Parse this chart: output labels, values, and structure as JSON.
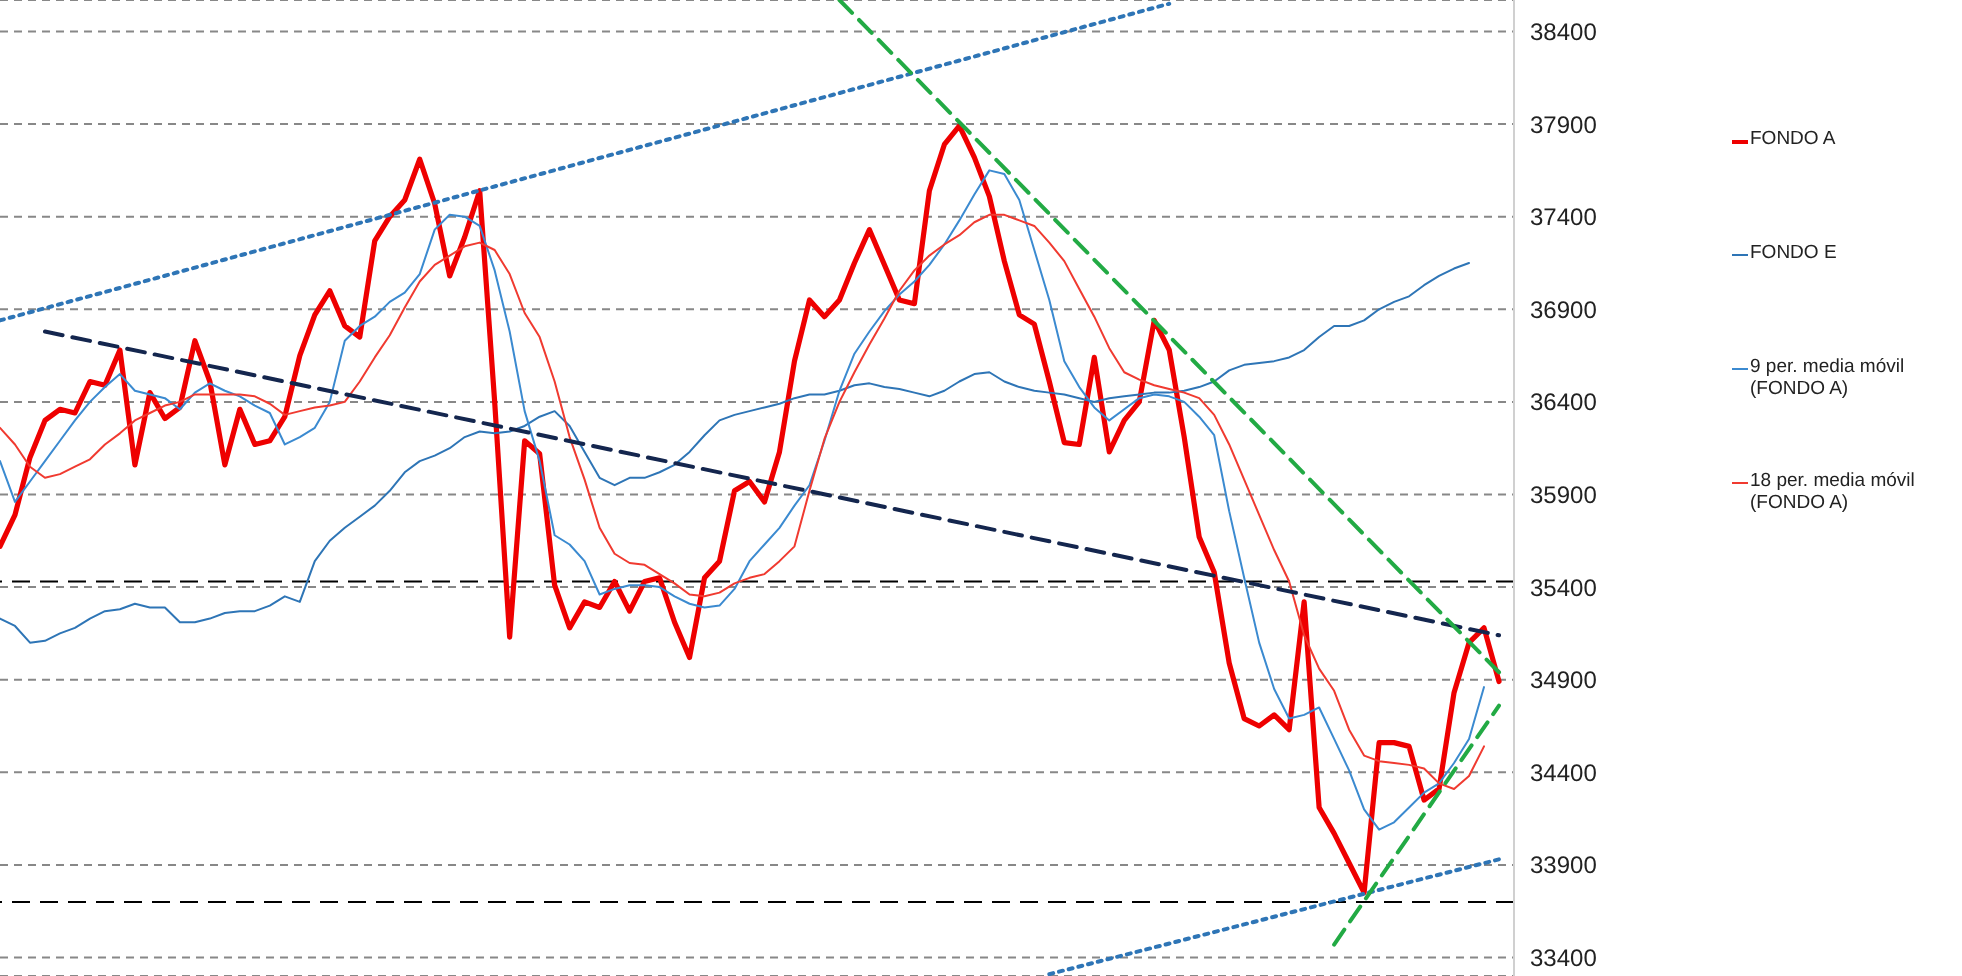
{
  "chart_data": {
    "type": "line",
    "categories": [
      null,
      null,
      null,
      null,
      null,
      null,
      null,
      null,
      null,
      null,
      null,
      null,
      null,
      null,
      null,
      null,
      null,
      null,
      null,
      null,
      null,
      null,
      null,
      null,
      null,
      null,
      null,
      null,
      null,
      null,
      null,
      null,
      null,
      null,
      null,
      null,
      null,
      null,
      null,
      null,
      null,
      null,
      null,
      null,
      null,
      null,
      null,
      null,
      null,
      null,
      null,
      null,
      null,
      null,
      null,
      null,
      null,
      null,
      null,
      null,
      null,
      null,
      null,
      null,
      null,
      null,
      null,
      null,
      null,
      null,
      null,
      null,
      null,
      null,
      null,
      null,
      null,
      null,
      null,
      null,
      null,
      null,
      null,
      null,
      null,
      null,
      null,
      null,
      null,
      null,
      null,
      null,
      null,
      null,
      null,
      null,
      null,
      null,
      null,
      null,
      null
    ],
    "series": [
      {
        "name": "FONDO A",
        "color": "#ee0000",
        "values": [
          35620,
          35790,
          36100,
          36300,
          36360,
          36340,
          36510,
          36490,
          36680,
          36060,
          36450,
          36310,
          36370,
          36730,
          36510,
          36060,
          36360,
          36170,
          36190,
          36320,
          36650,
          36870,
          37000,
          36810,
          36750,
          37270,
          37400,
          37490,
          37710,
          37470,
          37080,
          37290,
          37540,
          36400,
          35130,
          36190,
          36120,
          35410,
          35180,
          35320,
          35290,
          35430,
          35270,
          35430,
          35450,
          35210,
          35020,
          35450,
          35540,
          35920,
          35970,
          35860,
          36130,
          36620,
          36950,
          36860,
          36950,
          37150,
          37330,
          37140,
          36950,
          36930,
          37540,
          37790,
          37890,
          37720,
          37510,
          37160,
          36870,
          36820,
          36510,
          36180,
          36170,
          36640,
          36130,
          36300,
          36400,
          36840,
          36680,
          36210,
          35670,
          35480,
          34990,
          34690,
          34650,
          34710,
          34630,
          35320,
          34210,
          34070,
          33910,
          33750,
          34560,
          34560,
          34540,
          34250,
          34310,
          34830,
          35100,
          35180,
          34890
        ]
      },
      {
        "name": "FONDO E",
        "color": "#2e75b6",
        "values": [
          35230,
          35190,
          35100,
          35110,
          35150,
          35180,
          35230,
          35270,
          35280,
          35310,
          35290,
          35290,
          35210,
          35210,
          35230,
          35260,
          35270,
          35270,
          35300,
          35350,
          35320,
          35540,
          35650,
          35720,
          35780,
          35840,
          35920,
          36020,
          36080,
          36110,
          36150,
          36210,
          36240,
          36230,
          36240,
          36270,
          36320,
          36350,
          36270,
          36130,
          35990,
          35950,
          35990,
          35990,
          36020,
          36060,
          36130,
          36220,
          36300,
          36330,
          36350,
          36370,
          36390,
          36420,
          36440,
          36440,
          36460,
          36490,
          36500,
          36480,
          36470,
          36450,
          36430,
          36460,
          36510,
          36550,
          36560,
          36510,
          36480,
          36460,
          36450,
          36440,
          36420,
          36400,
          36420,
          36430,
          36440,
          36450,
          36450,
          36460,
          36480,
          36510,
          36570,
          36600,
          36610,
          36620,
          36640,
          36680,
          36750,
          36810,
          36810,
          36840,
          36900,
          36940,
          36970,
          37030,
          37080,
          37120,
          37150,
          null,
          null
        ]
      },
      {
        "name": "9 per. media móvil (FONDO A)",
        "color": "#3b8ad0",
        "values": [
          36080,
          35860,
          35970,
          36080,
          36190,
          36300,
          36400,
          36480,
          36550,
          36460,
          36440,
          36420,
          36360,
          36450,
          36500,
          36460,
          36430,
          36380,
          36340,
          36170,
          36210,
          36260,
          36400,
          36730,
          36810,
          36860,
          36940,
          36990,
          37090,
          37330,
          37410,
          37400,
          37350,
          37110,
          36780,
          36350,
          36080,
          35680,
          35630,
          35540,
          35360,
          35390,
          35410,
          35410,
          35400,
          35350,
          35310,
          35290,
          35300,
          35390,
          35540,
          35630,
          35720,
          35840,
          35950,
          36190,
          36460,
          36660,
          36780,
          36890,
          36980,
          37050,
          37140,
          37250,
          37380,
          37520,
          37650,
          37630,
          37490,
          37220,
          36950,
          36620,
          36480,
          36370,
          36300,
          36360,
          36420,
          36440,
          36430,
          36400,
          36320,
          36220,
          35810,
          35450,
          35100,
          34850,
          34690,
          34710,
          34750,
          34580,
          34410,
          34200,
          34090,
          34130,
          34210,
          34290,
          34340,
          34450,
          34580,
          34860,
          null
        ]
      },
      {
        "name": "18 per. media móvil (FONDO A)",
        "color": "#f03a30",
        "values": [
          36260,
          36170,
          36050,
          35990,
          36010,
          36050,
          36090,
          36170,
          36230,
          36300,
          36340,
          36380,
          36400,
          36440,
          36440,
          36440,
          36440,
          36430,
          36390,
          36330,
          36350,
          36370,
          36380,
          36400,
          36510,
          36640,
          36760,
          36910,
          37050,
          37140,
          37190,
          37240,
          37260,
          37220,
          37090,
          36880,
          36750,
          36510,
          36210,
          35980,
          35720,
          35580,
          35530,
          35520,
          35470,
          35420,
          35360,
          35350,
          35370,
          35420,
          35450,
          35470,
          35540,
          35620,
          35920,
          36200,
          36400,
          36560,
          36710,
          36850,
          37000,
          37110,
          37190,
          37250,
          37300,
          37370,
          37410,
          37410,
          37380,
          37350,
          37260,
          37160,
          37010,
          36860,
          36690,
          36560,
          36520,
          36490,
          36470,
          36450,
          36420,
          36330,
          36170,
          35980,
          35790,
          35600,
          35430,
          35140,
          34960,
          34840,
          34630,
          34490,
          34460,
          34450,
          34440,
          34420,
          34340,
          34310,
          34380,
          34540,
          null
        ]
      },
      {
        "type": "line",
        "color": "#2e75b6",
        "line_style": "dotted",
        "values": [
          36840,
          null,
          null,
          null,
          null,
          null,
          null,
          null,
          null,
          null,
          null,
          null,
          null,
          null,
          null,
          null,
          null,
          null,
          null,
          null,
          null,
          null,
          null,
          null,
          null,
          null,
          null,
          null,
          null,
          null,
          null,
          null,
          null,
          null,
          null,
          null,
          null,
          null,
          null,
          null,
          null,
          null,
          null,
          null,
          null,
          null,
          null,
          null,
          null,
          null,
          null,
          null,
          null,
          null,
          null,
          null,
          null,
          null,
          null,
          null,
          null,
          null,
          null,
          null,
          null,
          null,
          null,
          null,
          null,
          null,
          null,
          null,
          null,
          null,
          null,
          null,
          null,
          null,
          38550,
          null,
          null,
          null,
          null,
          null,
          null,
          null,
          null,
          null,
          null,
          null,
          null,
          null,
          null,
          null,
          null,
          null,
          null,
          null,
          null,
          null,
          null
        ]
      },
      {
        "type": "line",
        "color": "#2e75b6",
        "line_style": "dotted",
        "values": [
          null,
          null,
          null,
          null,
          null,
          null,
          null,
          null,
          null,
          null,
          null,
          null,
          null,
          null,
          null,
          null,
          null,
          null,
          null,
          null,
          null,
          null,
          null,
          null,
          null,
          null,
          null,
          null,
          null,
          null,
          null,
          null,
          null,
          null,
          null,
          null,
          null,
          null,
          null,
          null,
          null,
          null,
          null,
          null,
          null,
          null,
          null,
          null,
          null,
          null,
          null,
          null,
          null,
          null,
          null,
          null,
          null,
          null,
          null,
          null,
          null,
          null,
          null,
          null,
          null,
          null,
          null,
          null,
          null,
          null,
          33310,
          null,
          null,
          null,
          null,
          null,
          null,
          null,
          null,
          null,
          null,
          null,
          null,
          null,
          null,
          null,
          null,
          null,
          null,
          null,
          null,
          null,
          null,
          null,
          null,
          null,
          null,
          null,
          null,
          null,
          33930
        ]
      },
      {
        "type": "line",
        "color": "#14264e",
        "line_style": "dashed",
        "values": [
          null,
          null,
          null,
          36780,
          null,
          null,
          null,
          null,
          null,
          null,
          null,
          null,
          null,
          null,
          null,
          null,
          null,
          null,
          null,
          null,
          null,
          null,
          null,
          null,
          null,
          null,
          null,
          null,
          null,
          null,
          null,
          null,
          null,
          null,
          null,
          null,
          null,
          null,
          null,
          null,
          null,
          null,
          null,
          null,
          null,
          null,
          null,
          null,
          null,
          null,
          null,
          null,
          null,
          null,
          null,
          null,
          null,
          null,
          null,
          null,
          null,
          null,
          null,
          null,
          null,
          null,
          null,
          null,
          null,
          null,
          null,
          null,
          null,
          null,
          null,
          null,
          null,
          null,
          null,
          null,
          null,
          null,
          null,
          null,
          null,
          null,
          null,
          null,
          null,
          null,
          null,
          null,
          null,
          null,
          null,
          null,
          null,
          null,
          null,
          null,
          35140
        ]
      },
      {
        "type": "line",
        "color": "#22aa44",
        "line_style": "dashed",
        "values": [
          null,
          null,
          null,
          null,
          null,
          null,
          null,
          null,
          null,
          null,
          null,
          null,
          null,
          null,
          null,
          null,
          null,
          null,
          null,
          null,
          null,
          null,
          null,
          null,
          null,
          null,
          null,
          null,
          null,
          null,
          null,
          null,
          null,
          null,
          null,
          null,
          null,
          null,
          null,
          null,
          null,
          null,
          null,
          null,
          null,
          null,
          null,
          null,
          null,
          null,
          null,
          null,
          null,
          null,
          null,
          null,
          38570,
          null,
          null,
          null,
          null,
          null,
          null,
          null,
          null,
          null,
          null,
          null,
          null,
          null,
          null,
          null,
          null,
          null,
          null,
          null,
          null,
          null,
          null,
          null,
          null,
          null,
          null,
          null,
          null,
          null,
          null,
          null,
          null,
          null,
          null,
          null,
          null,
          null,
          null,
          null,
          null,
          null,
          null,
          null,
          34940
        ]
      },
      {
        "type": "line",
        "color": "#22aa44",
        "line_style": "dashed",
        "values": [
          null,
          null,
          null,
          null,
          null,
          null,
          null,
          null,
          null,
          null,
          null,
          null,
          null,
          null,
          null,
          null,
          null,
          null,
          null,
          null,
          null,
          null,
          null,
          null,
          null,
          null,
          null,
          null,
          null,
          null,
          null,
          null,
          null,
          null,
          null,
          null,
          null,
          null,
          null,
          null,
          null,
          null,
          null,
          null,
          null,
          null,
          null,
          null,
          null,
          null,
          null,
          null,
          null,
          null,
          null,
          null,
          null,
          null,
          null,
          null,
          null,
          null,
          null,
          null,
          null,
          null,
          null,
          null,
          null,
          null,
          null,
          null,
          null,
          null,
          null,
          null,
          null,
          null,
          null,
          null,
          null,
          null,
          null,
          null,
          null,
          null,
          null,
          null,
          null,
          33470,
          null,
          null,
          null,
          null,
          null,
          null,
          null,
          null,
          null,
          null,
          34760
        ]
      }
    ],
    "ylim": [
      33300,
      38570
    ],
    "yticks": [
      33400,
      33900,
      34400,
      34900,
      35400,
      35900,
      36400,
      36900,
      37400,
      37900,
      38400
    ],
    "tick_labels": "y",
    "grid": "y",
    "legend": "right",
    "marker": "none",
    "line_style": "solid",
    "ref_lines": [
      {
        "axis": "y",
        "value": 35430,
        "color": "#000000",
        "line_style": "dashed"
      },
      {
        "axis": "y",
        "value": 33700,
        "color": "#000000",
        "line_style": "dashed"
      }
    ]
  }
}
